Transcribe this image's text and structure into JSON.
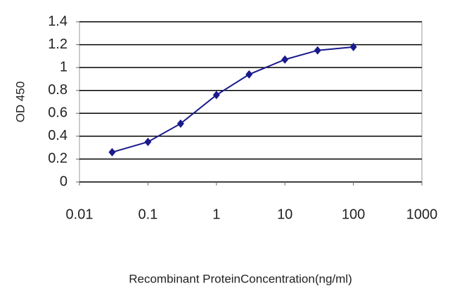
{
  "chart_data": {
    "type": "line",
    "x_label": "Recombinant ProteinConcentration(ng/ml)",
    "y_label": "OD 450",
    "x": [
      0.03,
      0.1,
      0.3,
      1,
      3,
      10,
      30,
      100
    ],
    "series": [
      {
        "name": "OD 450",
        "color": "#1a1a8c",
        "values": [
          0.26,
          0.35,
          0.51,
          0.76,
          0.94,
          1.07,
          1.15,
          1.18
        ]
      }
    ],
    "xscale": "log",
    "xlim": [
      0.01,
      1000
    ],
    "xticks": [
      0.01,
      0.1,
      1,
      10,
      100,
      1000
    ],
    "ylim": [
      0,
      1.4
    ],
    "yticks": [
      0,
      0.2,
      0.4,
      0.6,
      0.8,
      1,
      1.2,
      1.4
    ],
    "grid": true
  }
}
